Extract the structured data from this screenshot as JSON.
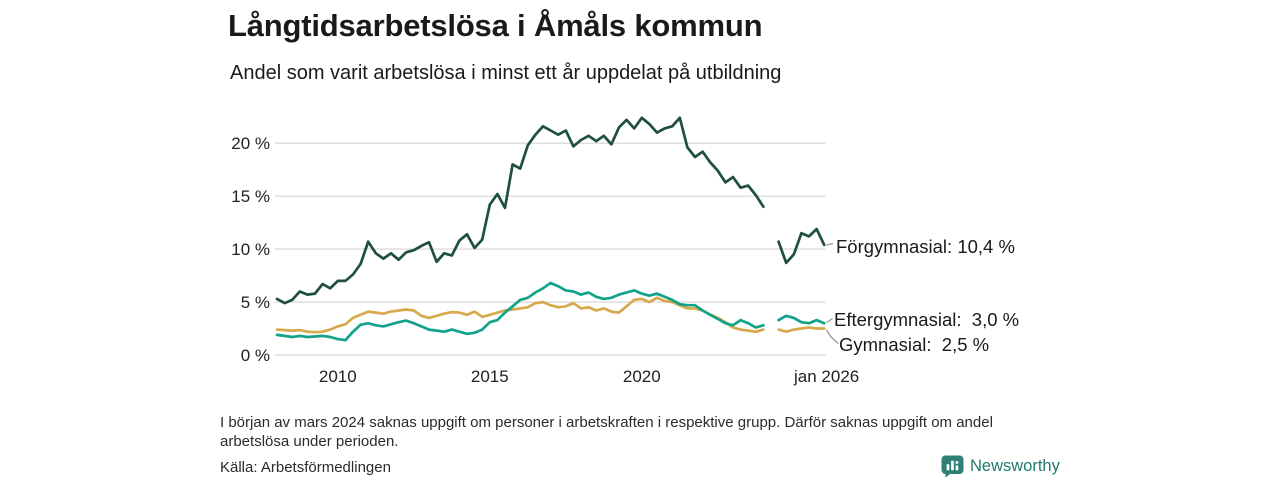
{
  "header": {
    "title": "Långtidsarbetslösa i Åmåls kommun",
    "subtitle": "Andel som varit arbetslösa i minst ett år uppdelat på utbildning"
  },
  "chart_data": {
    "type": "line",
    "title": "Långtidsarbetslösa i Åmåls kommun",
    "subtitle": "Andel som varit arbetslösa i minst ett år uppdelat på utbildning",
    "unit": "%",
    "x_start": 2008,
    "x_step": 0.25,
    "ylim": [
      0,
      23
    ],
    "grid": "horizontal",
    "yticks": [
      {
        "v": 0,
        "label": "0 %"
      },
      {
        "v": 5,
        "label": "5 %"
      },
      {
        "v": 10,
        "label": "10 %"
      },
      {
        "v": 15,
        "label": "15 %"
      },
      {
        "v": 20,
        "label": "20 %"
      }
    ],
    "xticks": [
      {
        "t": 2010,
        "label": "2010"
      },
      {
        "t": 2015,
        "label": "2015"
      },
      {
        "t": 2020,
        "label": "2020"
      },
      {
        "t": 2026.08,
        "label": "jan 2026"
      }
    ],
    "gap_period": "2024",
    "series": [
      {
        "name": "Förgymnasial",
        "color": "#1f4f3f",
        "end_value": "10,4 %",
        "end_label": "Förgymnasial: 10,4 %",
        "values": [
          5.3,
          4.9,
          5.2,
          6.0,
          5.7,
          5.8,
          6.7,
          6.3,
          7.0,
          7.0,
          7.6,
          8.6,
          10.7,
          9.6,
          9.1,
          9.6,
          9.0,
          9.7,
          9.9,
          10.3,
          10.65,
          8.8,
          9.6,
          9.4,
          10.8,
          11.4,
          10.1,
          10.9,
          14.2,
          15.2,
          13.9,
          18.0,
          17.6,
          19.8,
          20.8,
          21.6,
          21.2,
          20.8,
          21.2,
          19.7,
          20.3,
          20.7,
          20.2,
          20.7,
          19.9,
          21.5,
          22.2,
          21.4,
          22.4,
          21.8,
          21.0,
          21.4,
          21.6,
          22.4,
          19.6,
          18.7,
          19.2,
          18.2,
          17.4,
          16.3,
          16.8,
          15.8,
          16.0,
          15.1,
          14.0,
          null,
          10.7,
          8.7,
          9.5,
          11.5,
          11.2,
          11.9,
          10.4
        ]
      },
      {
        "name": "Gymnasial",
        "color": "#d8a84c",
        "end_value": "2,5 %",
        "end_label": "Gymnasial:  2,5 %",
        "values": [
          2.4,
          2.35,
          2.3,
          2.35,
          2.2,
          2.15,
          2.2,
          2.4,
          2.7,
          2.9,
          3.5,
          3.8,
          4.1,
          4.0,
          3.9,
          4.1,
          4.2,
          4.3,
          4.2,
          3.7,
          3.5,
          3.7,
          3.9,
          4.05,
          4.0,
          3.8,
          4.1,
          3.6,
          3.8,
          4.0,
          4.2,
          4.3,
          4.4,
          4.5,
          4.9,
          5.0,
          4.7,
          4.5,
          4.6,
          4.9,
          4.4,
          4.5,
          4.2,
          4.4,
          4.1,
          4.0,
          4.6,
          5.2,
          5.3,
          5.0,
          5.4,
          5.1,
          5.0,
          4.7,
          4.4,
          4.4,
          4.2,
          3.8,
          3.5,
          3.1,
          2.6,
          2.4,
          2.3,
          2.2,
          2.4,
          null,
          2.4,
          2.2,
          2.4,
          2.5,
          2.6,
          2.5,
          2.5
        ]
      },
      {
        "name": "Eftergymnasial",
        "color": "#12a28a",
        "end_value": "3,0 %",
        "end_label": "Eftergymnasial:  3,0 %",
        "values": [
          1.9,
          1.8,
          1.7,
          1.8,
          1.7,
          1.75,
          1.8,
          1.7,
          1.5,
          1.4,
          2.2,
          2.85,
          3.0,
          2.8,
          2.7,
          2.9,
          3.1,
          3.25,
          3.0,
          2.7,
          2.4,
          2.3,
          2.2,
          2.4,
          2.2,
          2.0,
          2.1,
          2.4,
          3.1,
          3.3,
          4.0,
          4.6,
          5.2,
          5.4,
          5.9,
          6.3,
          6.8,
          6.5,
          6.1,
          6.0,
          5.7,
          5.9,
          5.5,
          5.3,
          5.4,
          5.7,
          5.9,
          6.1,
          5.8,
          5.6,
          5.8,
          5.5,
          5.2,
          4.8,
          4.7,
          4.7,
          4.2,
          3.8,
          3.4,
          3.0,
          2.8,
          3.3,
          3.0,
          2.6,
          2.8,
          null,
          3.3,
          3.7,
          3.5,
          3.1,
          3.0,
          3.3,
          3.0
        ]
      }
    ]
  },
  "footer": {
    "note": "I början av mars 2024 saknas uppgift om personer i arbetskraften i respektive grupp. Därför saknas uppgift om andel arbetslösa under perioden.",
    "source": "Källa: Arbetsförmedlingen"
  },
  "branding": {
    "name": "Newsworthy",
    "color": "#2e8076"
  },
  "colors": {
    "grid": "#dcdcdc",
    "connector": "#999999",
    "text": "#1a1a1a"
  }
}
